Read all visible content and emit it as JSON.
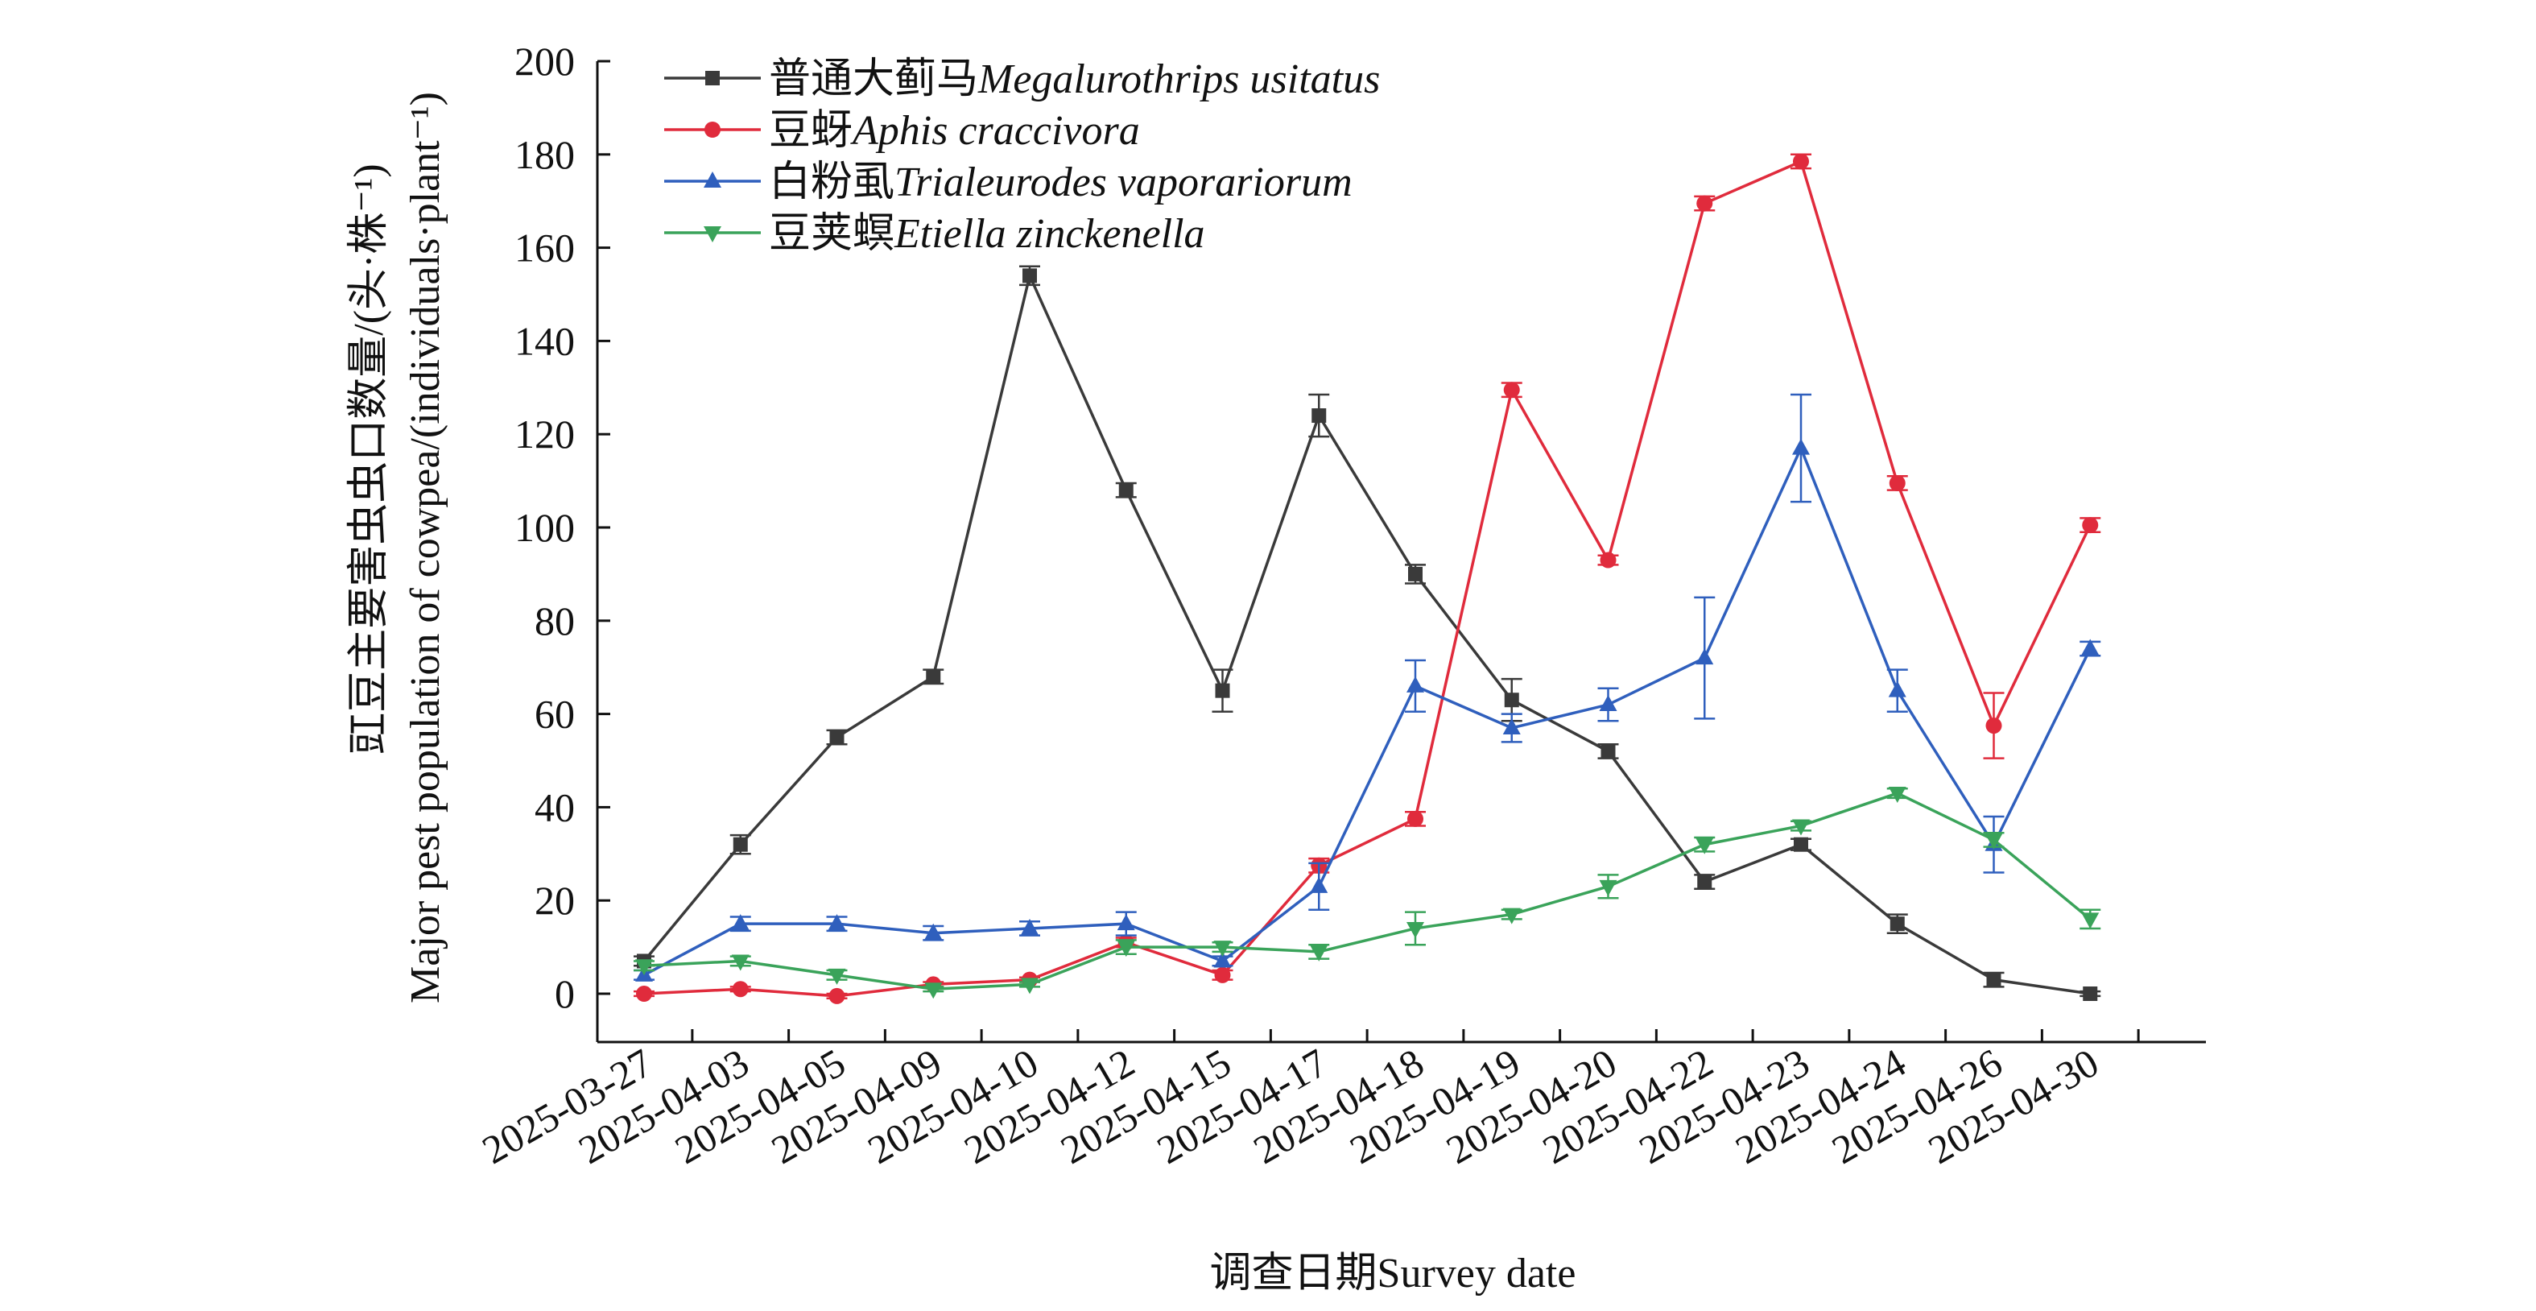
{
  "chart_data": {
    "type": "line",
    "x": [
      "2025-03-27",
      "2025-04-03",
      "2025-04-05",
      "2025-04-09",
      "2025-04-10",
      "2025-04-12",
      "2025-04-15",
      "2025-04-17",
      "2025-04-18",
      "2025-04-19",
      "2025-04-20",
      "2025-04-22",
      "2025-04-23",
      "2025-04-24",
      "2025-04-26",
      "2025-04-30"
    ],
    "xlabel": "调查日期Survey date",
    "ylabel_cn": "豇豆主要害虫虫口数量/(头·株⁻¹)",
    "ylabel_en": "Major pest population of cowpea/(individuals·plant⁻¹)",
    "ylim": [
      -10,
      200
    ],
    "yticks": [
      0,
      20,
      40,
      60,
      80,
      100,
      120,
      140,
      160,
      180,
      200
    ],
    "grid": false,
    "legend_position": "top-left",
    "series": [
      {
        "name_cn": "普通大蓟马",
        "name_latin": "Megalurothrips usitatus",
        "color": "#3a3a3a",
        "marker": "square",
        "values": [
          7,
          32,
          55,
          68,
          154,
          108,
          65,
          124,
          90,
          63,
          52,
          24,
          32,
          15,
          3,
          0
        ],
        "errors": [
          1,
          2,
          1.5,
          1.5,
          2,
          1.5,
          4.5,
          4.5,
          2,
          4.5,
          1.5,
          1.5,
          1.2,
          2,
          1.5,
          0.5
        ]
      },
      {
        "name_cn": "豆蚜",
        "name_latin": "Aphis craccivora",
        "color": "#e02b3c",
        "marker": "circle",
        "values": [
          0,
          1,
          -0.5,
          2,
          3,
          11,
          4,
          27.5,
          37.5,
          129.5,
          93,
          169.5,
          178.5,
          109.5,
          57.5,
          100.5
        ],
        "errors": [
          0.5,
          0.5,
          0.5,
          0.5,
          0.5,
          1,
          1,
          1.5,
          1.5,
          1.5,
          1,
          1.5,
          1.5,
          1.5,
          7,
          1.5
        ]
      },
      {
        "name_cn": "白粉虱",
        "name_latin": "Trialeurodes vaporariorum",
        "color": "#2f5fbd",
        "marker": "triangle-up",
        "values": [
          4,
          15,
          15,
          13,
          14,
          15,
          7,
          23,
          66,
          57,
          62,
          72,
          117,
          65,
          32,
          74
        ],
        "errors": [
          1,
          1.5,
          1.5,
          1.5,
          1.5,
          2.5,
          1,
          5,
          5.5,
          3,
          3.5,
          13,
          11.5,
          4.5,
          6,
          1.5
        ]
      },
      {
        "name_cn": "豆荚螟",
        "name_latin": "Etiella zinckenella",
        "color": "#3aa35a",
        "marker": "triangle-down",
        "values": [
          6,
          7,
          4,
          1,
          2,
          10,
          10,
          9,
          14,
          17,
          23,
          32,
          36,
          43,
          33,
          16
        ],
        "errors": [
          1,
          1,
          1,
          0.5,
          0.5,
          1.5,
          1,
          1.5,
          3.5,
          1,
          2.5,
          1.5,
          1,
          1,
          1.5,
          2
        ]
      }
    ]
  }
}
